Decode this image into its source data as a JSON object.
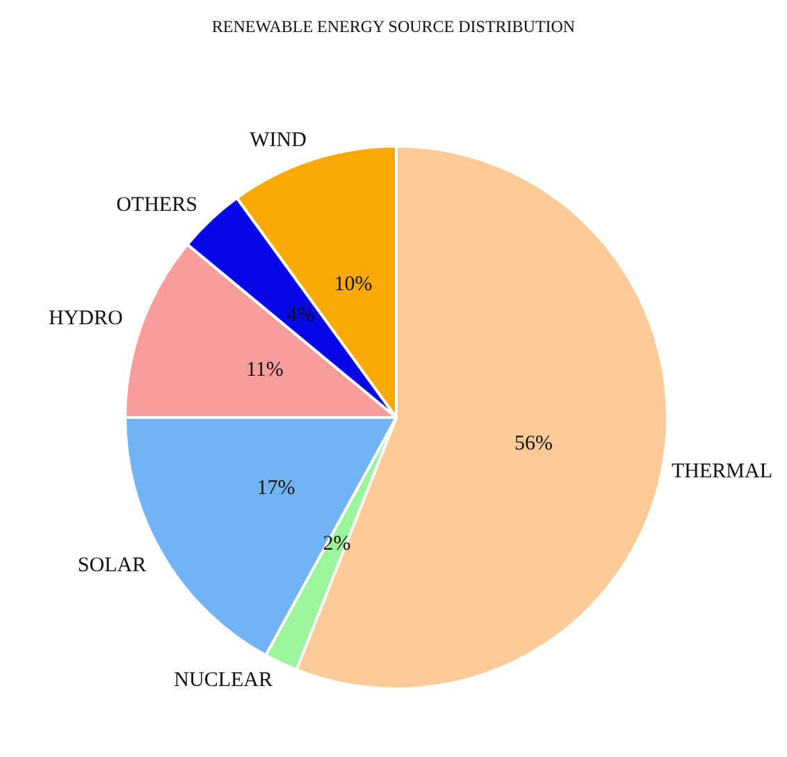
{
  "chart_data": {
    "type": "pie",
    "title": "RENEWABLE ENERGY SOURCE DISTRIBUTION",
    "categories": [
      "THERMAL",
      "NUCLEAR",
      "SOLAR",
      "HYDRO",
      "OTHERS",
      "WIND"
    ],
    "values": [
      56,
      2,
      17,
      11,
      4,
      10
    ],
    "colors": [
      "#fdcb98",
      "#9cf59c",
      "#71b3f5",
      "#f99c9c",
      "#0606e6",
      "#f9a905"
    ],
    "value_labels": [
      "56%",
      "2%",
      "17%",
      "11%",
      "4%",
      "10%"
    ],
    "legend": false
  }
}
